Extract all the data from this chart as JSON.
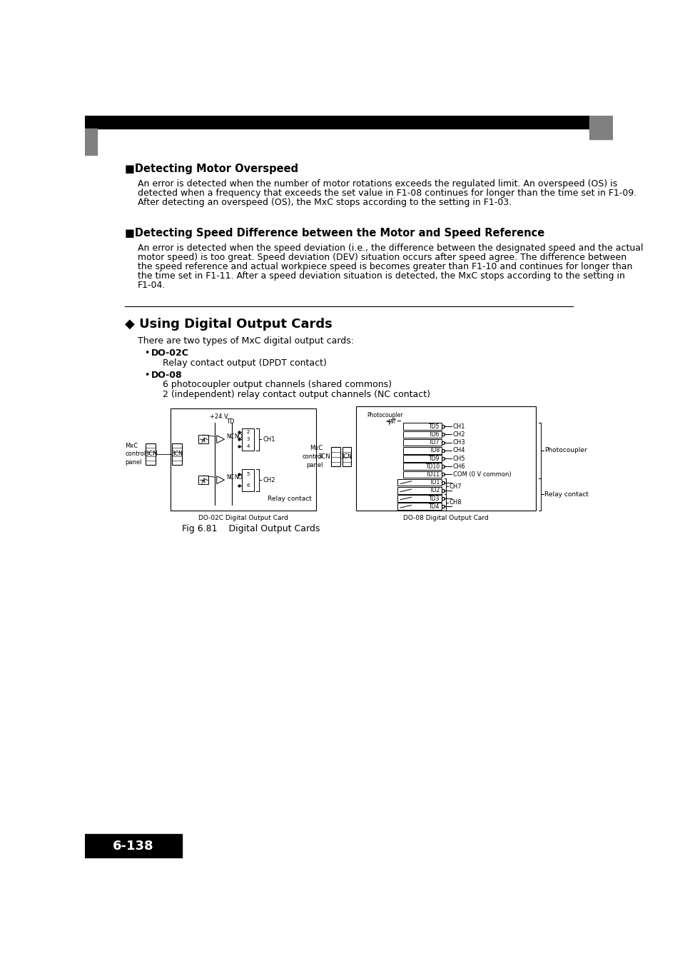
{
  "page_bg": "#ffffff",
  "header_bar_color": "#000000",
  "gray_square_color": "#808080",
  "section1_title": "■Detecting Motor Overspeed",
  "section1_body_lines": [
    "An error is detected when the number of motor rotations exceeds the regulated limit. An overspeed (OS) is",
    "detected when a frequency that exceeds the set value in F1-08 continues for longer than the time set in F1-09.",
    "After detecting an overspeed (OS), the MxC stops according to the setting in F1-03."
  ],
  "section2_title": "■Detecting Speed Difference between the Motor and Speed Reference",
  "section2_body_lines": [
    "An error is detected when the speed deviation (i.e., the difference between the designated speed and the actual",
    "motor speed) is too great. Speed deviation (DEV) situation occurs after speed agree. The difference between",
    "the speed reference and actual workpiece speed is becomes greater than F1-10 and continues for longer than",
    "the time set in F1-11. After a speed deviation situation is detected, the MxC stops according to the setting in",
    "F1-04."
  ],
  "section3_title": "◆ Using Digital Output Cards",
  "section3_body": "There are two types of MxC digital output cards:",
  "bullet1_label": "DO-02C",
  "bullet1_sub": "Relay contact output (DPDT contact)",
  "bullet2_label": "DO-08",
  "bullet2_sub1": "6 photocoupler output channels (shared commons)",
  "bullet2_sub2": "2 (independent) relay contact output channels (NC contact)",
  "fig_caption": "Fig 6.81    Digital Output Cards",
  "footer_label": "6-138",
  "footer_bg": "#000000",
  "footer_text_color": "#ffffff"
}
